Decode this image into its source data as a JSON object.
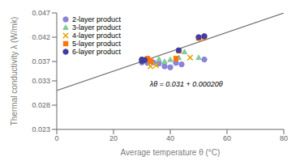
{
  "chart_data": {
    "type": "scatter",
    "x_label": "Average temperature θ (°C)",
    "y_label": "Thermal conductivity λ (W/mk)",
    "annotation": "λθ = 0.031 + 0.00020θ",
    "xlim": [
      0,
      80
    ],
    "ylim": [
      0.023,
      0.047
    ],
    "xticks": [
      0,
      20,
      40,
      60,
      80
    ],
    "yticks": [
      0.023,
      0.028,
      0.033,
      0.037,
      0.042,
      0.047
    ],
    "grid": false,
    "legend": "upper left",
    "series": [
      {
        "type": "line",
        "color": "#777777",
        "x": [
          0,
          80
        ],
        "values": [
          0.031,
          0.047
        ]
      },
      {
        "name": "2-layer product",
        "type": "scatter",
        "marker": "circle",
        "color": "#8884d8",
        "x": [
          30,
          32,
          34,
          36,
          38,
          40,
          42,
          44,
          52
        ],
        "values": [
          0.0368,
          0.0367,
          0.0368,
          0.0366,
          0.036,
          0.0358,
          0.0367,
          0.0364,
          0.0374
        ]
      },
      {
        "name": "3-layer product",
        "type": "scatter",
        "marker": "triangle",
        "color": "#82ca9d",
        "x": [
          30,
          33,
          36,
          38,
          40,
          43,
          45,
          50
        ],
        "values": [
          0.0371,
          0.0372,
          0.0375,
          0.037,
          0.0374,
          0.0378,
          0.039,
          0.0378
        ]
      },
      {
        "name": "4-layer product",
        "type": "scatter",
        "marker": "x",
        "color": "#e6a100",
        "x": [
          33,
          35,
          47
        ],
        "values": [
          0.036,
          0.0362,
          0.0378
        ]
      },
      {
        "name": "5-layer product",
        "type": "scatter",
        "marker": "square",
        "color": "#ff7300",
        "x": [
          30,
          32,
          33,
          42,
          43,
          50,
          52
        ],
        "values": [
          0.0373,
          0.0376,
          0.0371,
          0.0376,
          0.0392,
          0.0418,
          0.042
        ]
      },
      {
        "name": "6-layer product",
        "type": "scatter",
        "marker": "circle",
        "color": "#413ea0",
        "x": [
          30,
          30,
          31,
          43,
          50,
          52
        ],
        "values": [
          0.0371,
          0.0374,
          0.0373,
          0.0393,
          0.042,
          0.0422
        ]
      }
    ]
  }
}
